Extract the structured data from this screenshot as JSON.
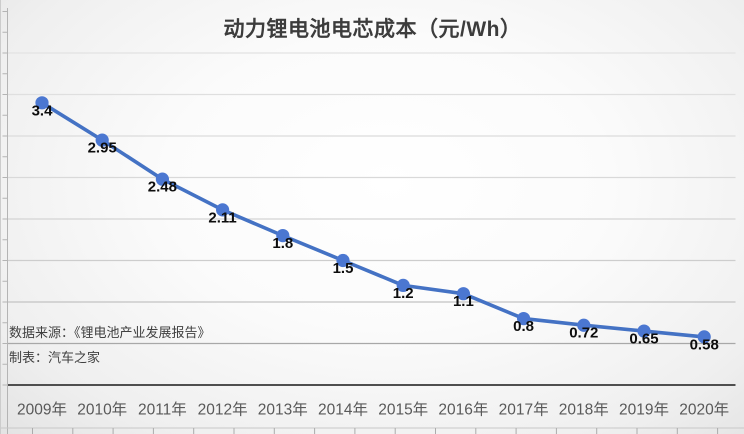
{
  "chart": {
    "title": "动力锂电池电芯成本（元/Wh）"
  },
  "source": {
    "line1": "数据来源：《锂电池产业发展报告》",
    "line2": "制表：汽车之家"
  },
  "chart_data": {
    "type": "line",
    "title": "动力锂电池电芯成本（元/Wh）",
    "categories": [
      "2009年",
      "2010年",
      "2011年",
      "2012年",
      "2013年",
      "2014年",
      "2015年",
      "2016年",
      "2017年",
      "2018年",
      "2019年",
      "2020年"
    ],
    "values": [
      3.4,
      2.95,
      2.48,
      2.11,
      1.8,
      1.5,
      1.2,
      1.1,
      0.8,
      0.72,
      0.65,
      0.58
    ],
    "value_labels": [
      "3.4",
      "2.95",
      "2.48",
      "2.11",
      "1.8",
      "1.5",
      "1.2",
      "1.1",
      "0.8",
      "0.72",
      "0.65",
      "0.58"
    ],
    "xlabel": "",
    "ylabel": "",
    "ylim": [
      0,
      4
    ],
    "gridline_step": 0.5,
    "grid": true,
    "legend": "none",
    "y_axis_tick_labels_visible": false,
    "data_labels_position": "below-point",
    "colors": {
      "line": "#4472c4",
      "marker": "#4b77d1",
      "value_label": "#0d0d0d",
      "axis_label": "#595959",
      "zero_axis": "#4f4f4f",
      "y_axis": "#b4b4b4",
      "title": "#3c3c3c"
    }
  }
}
